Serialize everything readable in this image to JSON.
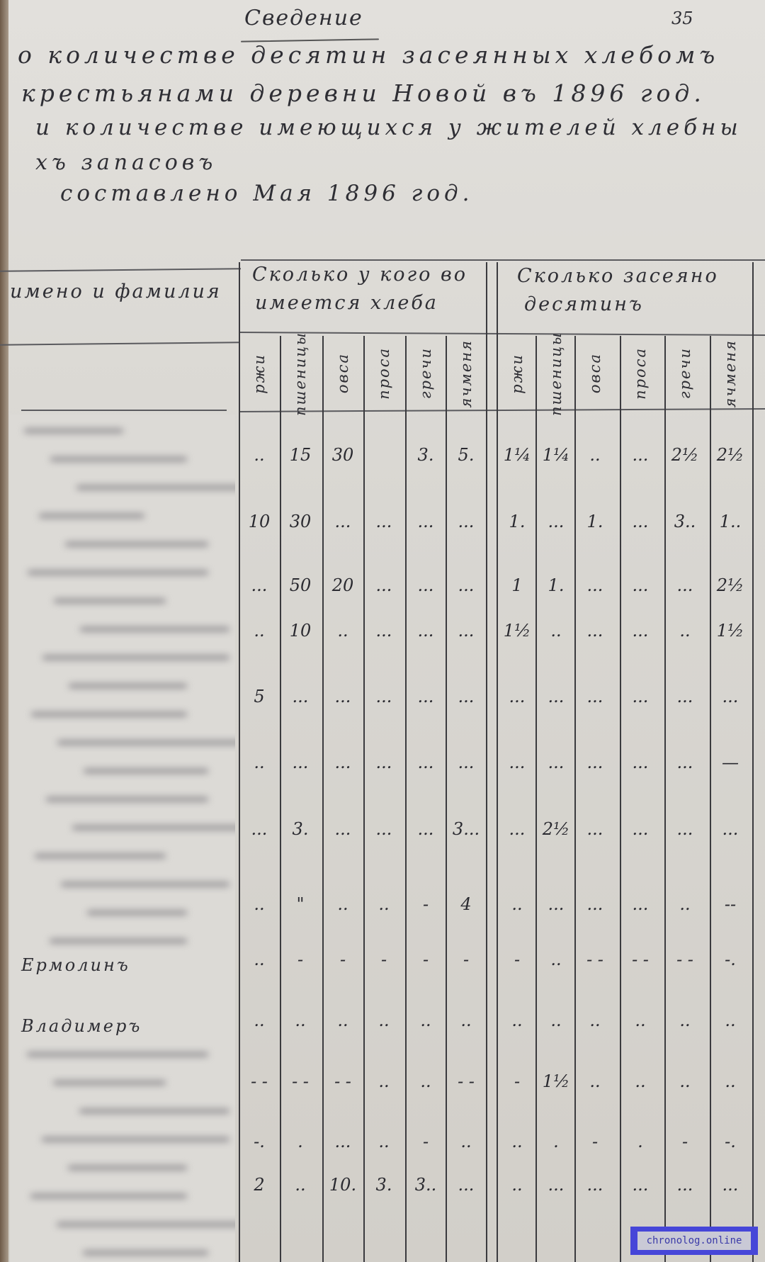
{
  "document": {
    "title": "Сведение",
    "page_number": "35",
    "heading_lines": [
      "о количестве десятин засеянных хлебомъ",
      "крестьянами деревни Новой въ 1896 год.",
      "и количестве имеющихся у жителей хлебны",
      "хъ запасовъ",
      "составлено Мая 1896 год."
    ]
  },
  "table": {
    "name_header": "имено и фамилия",
    "group_stock": [
      "Сколько у кого во",
      "имеется хлеба"
    ],
    "group_sown": [
      "Сколько засеяно",
      "десятинъ"
    ],
    "subcolumns": [
      "ржи",
      "пшеницы",
      "овса",
      "проса",
      "гречи",
      "ячменя"
    ],
    "rows": [
      {
        "name": "",
        "stock": [
          "..",
          "15",
          "30",
          "",
          "3.",
          "5."
        ],
        "sown": [
          "1¼",
          "1¼",
          "..",
          "...",
          "2½",
          "2½"
        ]
      },
      {
        "name": "",
        "stock": [
          "10",
          "30",
          "...",
          "...",
          "...",
          "..."
        ],
        "sown": [
          "1.",
          "...",
          "1.",
          "...",
          "3..",
          "1.."
        ]
      },
      {
        "name": "",
        "stock": [
          "...",
          "50",
          "20",
          "...",
          "...",
          "..."
        ],
        "sown": [
          "1",
          "1.",
          "...",
          "...",
          "...",
          "2½"
        ]
      },
      {
        "name": "",
        "stock": [
          "..",
          "10",
          "..",
          "...",
          "...",
          "..."
        ],
        "sown": [
          "1½",
          "..",
          "...",
          "...",
          "..",
          "1½"
        ]
      },
      {
        "name": "",
        "stock": [
          "5",
          "...",
          "...",
          "...",
          "...",
          "..."
        ],
        "sown": [
          "...",
          "...",
          "...",
          "...",
          "...",
          "..."
        ]
      },
      {
        "name": "",
        "stock": [
          "..",
          "...",
          "...",
          "...",
          "...",
          "..."
        ],
        "sown": [
          "...",
          "...",
          "...",
          "...",
          "...",
          "—"
        ]
      },
      {
        "name": "",
        "stock": [
          "...",
          "3.",
          "...",
          "...",
          "...",
          "3..."
        ],
        "sown": [
          "...",
          "2½",
          "...",
          "...",
          "...",
          "..."
        ]
      },
      {
        "name": "",
        "stock": [
          "..",
          "\"",
          "..",
          "..",
          "-",
          "4"
        ],
        "sown": [
          "..",
          "...",
          "...",
          "...",
          "..",
          "--"
        ]
      },
      {
        "name": "Ермолинъ",
        "stock": [
          "..",
          "-",
          "-",
          "-",
          "-",
          "-"
        ],
        "sown": [
          "-",
          "..",
          "- -",
          "- -",
          "- -",
          "-."
        ]
      },
      {
        "name": "Владимеръ",
        "stock": [
          "..",
          "..",
          "..",
          "..",
          "..",
          ".."
        ],
        "sown": [
          "..",
          "..",
          "..",
          "..",
          "..",
          ".."
        ]
      },
      {
        "name": "",
        "stock": [
          "- -",
          "- -",
          "- -",
          "..",
          "..",
          "- -"
        ],
        "sown": [
          "-",
          "1½",
          "..",
          "..",
          "..",
          ".."
        ]
      },
      {
        "name": "",
        "stock": [
          "-.",
          ".",
          "...",
          "..",
          "-",
          ".."
        ],
        "sown": [
          "..",
          ".",
          "-",
          ".",
          "-",
          "-."
        ]
      },
      {
        "name": "",
        "stock": [
          "2",
          "..",
          "10.",
          "3.",
          "3..",
          "..."
        ],
        "sown": [
          "..",
          "...",
          "...",
          "...",
          "...",
          "..."
        ]
      }
    ]
  },
  "watermark": "chronolog.online",
  "colors": {
    "paper": "#d9d7d2",
    "ink": "#2e2e34",
    "watermark": "#4646d8"
  }
}
